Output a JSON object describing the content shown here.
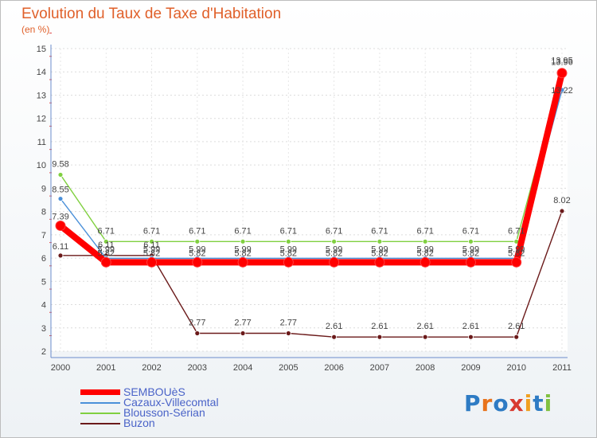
{
  "chart_data": {
    "type": "line",
    "title": "Evolution du Taux de Taxe d'Habitation",
    "unit_label": "(en %)",
    "xlabel": "",
    "ylabel": "",
    "x": [
      "2000",
      "2001",
      "2002",
      "2003",
      "2004",
      "2005",
      "2006",
      "2007",
      "2008",
      "2009",
      "2010",
      "2011"
    ],
    "ylim": [
      2,
      15
    ],
    "yticks": [
      "2",
      "3",
      "4",
      "5",
      "6",
      "7",
      "8",
      "9",
      "10",
      "11",
      "12",
      "13",
      "14",
      "15"
    ],
    "series": [
      {
        "name": "SEMBOUèS",
        "color": "#ff0000",
        "values": [
          7.39,
          5.82,
          5.82,
          5.82,
          5.82,
          5.82,
          5.82,
          5.82,
          5.82,
          5.82,
          5.82,
          13.95
        ],
        "labels": [
          "7.39",
          "5.82",
          "5.82",
          "5.82",
          "5.82",
          "5.82",
          "5.82",
          "5.82",
          "5.82",
          "5.82",
          "5.82",
          "13.95"
        ]
      },
      {
        "name": "Cazaux-Villecomtal",
        "color": "#4a90d9",
        "values": [
          8.55,
          5.99,
          5.99,
          5.99,
          5.99,
          5.99,
          5.99,
          5.99,
          5.99,
          5.99,
          5.99,
          13.22
        ],
        "labels": [
          "8.55",
          "5.99",
          "5.99",
          "5.99",
          "5.99",
          "5.99",
          "5.99",
          "5.99",
          "5.99",
          "5.99",
          "5.99",
          "13.22"
        ]
      },
      {
        "name": "Blousson-Sérian",
        "color": "#80d040",
        "values": [
          9.58,
          6.71,
          6.71,
          6.71,
          6.71,
          6.71,
          6.71,
          6.71,
          6.71,
          6.71,
          6.71,
          13.96
        ],
        "labels": [
          "9.58",
          "6.71",
          "6.71",
          "6.71",
          "6.71",
          "6.71",
          "6.71",
          "6.71",
          "6.71",
          "6.71",
          "6.71",
          "13.96"
        ]
      },
      {
        "name": "Buzon",
        "color": "#6b1a1a",
        "values": [
          6.11,
          6.11,
          6.11,
          2.77,
          2.77,
          2.77,
          2.61,
          2.61,
          2.61,
          2.61,
          2.61,
          8.02
        ],
        "labels": [
          "6.11",
          "6.11",
          "6.11",
          "2.77",
          "2.77",
          "2.77",
          "2.61",
          "2.61",
          "2.61",
          "2.61",
          "2.61",
          "8.02"
        ]
      }
    ]
  },
  "legend": {
    "items": [
      {
        "label": "SEMBOUèS",
        "color": "#ff0000"
      },
      {
        "label": "Cazaux-Villecomtal",
        "color": "#4a90d9"
      },
      {
        "label": "Blousson-Sérian",
        "color": "#80d040"
      },
      {
        "label": "Buzon",
        "color": "#6b1a1a"
      }
    ]
  },
  "logo": {
    "text": "Proxiti",
    "letter_colors": [
      "#2e7bc4",
      "#e8731c",
      "#2e7bc4",
      "#d83a2f",
      "#f0a020",
      "#2e7bc4",
      "#80c040"
    ]
  }
}
